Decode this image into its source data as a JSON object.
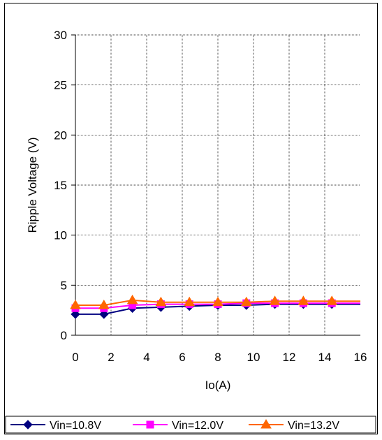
{
  "chart_data": {
    "type": "line",
    "xlabel": "Io(A)",
    "ylabel": "Ripple Voltage (V)",
    "xlim": [
      0,
      16
    ],
    "ylim": [
      0,
      30
    ],
    "x_ticks": [
      "0",
      "2",
      "4",
      "6",
      "8",
      "10",
      "12",
      "14",
      "16"
    ],
    "y_ticks": [
      "0",
      "5",
      "10",
      "15",
      "20",
      "25",
      "30"
    ],
    "grid": true,
    "legend_position": "bottom",
    "x": [
      0,
      1.6,
      3.2,
      4.8,
      6.4,
      8.0,
      9.6,
      11.2,
      12.8,
      14.4
    ],
    "series": [
      {
        "name": "Vin=10.8V",
        "color": "#000080",
        "marker": "diamond",
        "values": [
          2.1,
          2.1,
          2.7,
          2.8,
          2.9,
          3.0,
          3.0,
          3.1,
          3.1,
          3.1
        ]
      },
      {
        "name": "Vin=12.0V",
        "color": "#ff00ff",
        "marker": "square",
        "values": [
          2.7,
          2.7,
          3.0,
          3.1,
          3.1,
          3.1,
          3.2,
          3.2,
          3.2,
          3.2
        ]
      },
      {
        "name": "Vin=13.2V",
        "color": "#ff6600",
        "marker": "triangle",
        "values": [
          3.0,
          3.0,
          3.5,
          3.3,
          3.3,
          3.3,
          3.3,
          3.4,
          3.4,
          3.4
        ]
      }
    ]
  }
}
